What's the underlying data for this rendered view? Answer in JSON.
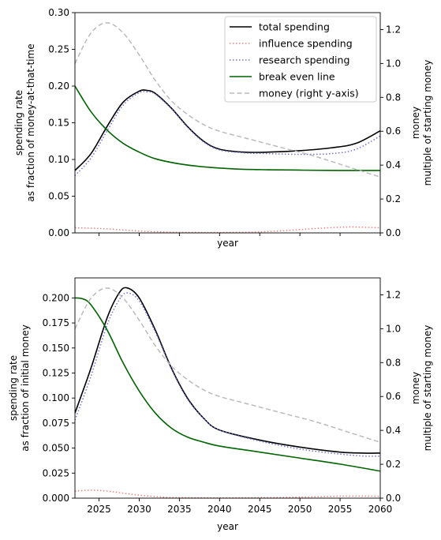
{
  "chart_data": [
    {
      "type": "line",
      "xlabel": "year",
      "ylabel_line1": "spending rate",
      "ylabel_line2": "as fraction of money-at-that-time",
      "y2label_line1": "money",
      "y2label_line2": "multiple of starting money",
      "xlim": [
        2022,
        2060
      ],
      "ylim": [
        0,
        0.3
      ],
      "y2lim": [
        0,
        1.3
      ],
      "x_tick_labels_shown": false,
      "x_ticks": [
        2025,
        2030,
        2035,
        2040,
        2045,
        2050,
        2055,
        2060
      ],
      "y_ticks": [
        0.0,
        0.05,
        0.1,
        0.15,
        0.2,
        0.25,
        0.3
      ],
      "y_tick_labels": [
        "0.00",
        "0.05",
        "0.10",
        "0.15",
        "0.20",
        "0.25",
        "0.30"
      ],
      "y2_ticks": [
        0.0,
        0.2,
        0.4,
        0.6,
        0.8,
        1.0,
        1.2
      ],
      "y2_tick_labels": [
        "0.0",
        "0.2",
        "0.4",
        "0.6",
        "0.8",
        "1.0",
        "1.2"
      ],
      "legend": {
        "placement": "top-right",
        "entries": [
          "total spending",
          "influence spending",
          "research spending",
          "break even line",
          "money (right y-axis)"
        ]
      },
      "series": [
        {
          "name": "total spending",
          "axis": "left",
          "color": "#000000",
          "style": "solid",
          "x": [
            2022,
            2024,
            2026,
            2028,
            2030,
            2031,
            2032,
            2034,
            2036,
            2038,
            2040,
            2043,
            2046,
            2050,
            2054,
            2057,
            2060
          ],
          "y": [
            0.085,
            0.108,
            0.145,
            0.178,
            0.193,
            0.194,
            0.19,
            0.17,
            0.145,
            0.125,
            0.114,
            0.11,
            0.11,
            0.112,
            0.116,
            0.122,
            0.139
          ]
        },
        {
          "name": "influence spending",
          "axis": "left",
          "color": "#f08080",
          "style": "dotted",
          "x": [
            2022,
            2025,
            2028,
            2031,
            2034,
            2037,
            2040,
            2044,
            2048,
            2052,
            2056,
            2060
          ],
          "y": [
            0.007,
            0.006,
            0.004,
            0.002,
            0.001,
            0.0005,
            0.0005,
            0.001,
            0.003,
            0.006,
            0.008,
            0.007
          ]
        },
        {
          "name": "research spending",
          "axis": "left",
          "color": "#7070e0",
          "style": "dotted",
          "x": [
            2022,
            2024,
            2026,
            2028,
            2030,
            2031,
            2032,
            2034,
            2036,
            2038,
            2040,
            2043,
            2046,
            2050,
            2054,
            2057,
            2060
          ],
          "y": [
            0.078,
            0.102,
            0.139,
            0.174,
            0.191,
            0.192,
            0.189,
            0.169,
            0.144,
            0.124,
            0.113,
            0.109,
            0.108,
            0.107,
            0.108,
            0.114,
            0.132
          ]
        },
        {
          "name": "break even line",
          "axis": "left",
          "color": "#006400",
          "style": "solid",
          "x": [
            2022,
            2024,
            2026,
            2028,
            2030,
            2032,
            2035,
            2038,
            2042,
            2046,
            2050,
            2055,
            2060
          ],
          "y": [
            0.2,
            0.165,
            0.14,
            0.122,
            0.11,
            0.101,
            0.094,
            0.09,
            0.087,
            0.086,
            0.0855,
            0.085,
            0.085
          ]
        },
        {
          "name": "money (right y-axis)",
          "axis": "right",
          "color": "#bbbbbb",
          "style": "dashed",
          "x": [
            2022,
            2024,
            2026,
            2028,
            2030,
            2032,
            2034,
            2036,
            2038,
            2040,
            2044,
            2048,
            2052,
            2056,
            2060
          ],
          "y": [
            1.0,
            1.18,
            1.24,
            1.18,
            1.05,
            0.9,
            0.78,
            0.7,
            0.64,
            0.6,
            0.55,
            0.5,
            0.45,
            0.39,
            0.33
          ]
        }
      ]
    },
    {
      "type": "line",
      "xlabel": "year",
      "ylabel_line1": "spending rate",
      "ylabel_line2": "as fraction of initial money",
      "y2label_line1": "money",
      "y2label_line2": "multiple of starting money",
      "xlim": [
        2022,
        2060
      ],
      "ylim": [
        0,
        0.22
      ],
      "y2lim": [
        0,
        1.3
      ],
      "x_tick_labels_shown": true,
      "x_ticks": [
        2025,
        2030,
        2035,
        2040,
        2045,
        2050,
        2055,
        2060
      ],
      "x_tick_labels": [
        "2025",
        "2030",
        "2035",
        "2040",
        "2045",
        "2050",
        "2055",
        "2060"
      ],
      "y_ticks": [
        0.0,
        0.025,
        0.05,
        0.075,
        0.1,
        0.125,
        0.15,
        0.175,
        0.2
      ],
      "y_tick_labels": [
        "0.000",
        "0.025",
        "0.050",
        "0.075",
        "0.100",
        "0.125",
        "0.150",
        "0.175",
        "0.200"
      ],
      "y2_ticks": [
        0.0,
        0.2,
        0.4,
        0.6,
        0.8,
        1.0,
        1.2
      ],
      "y2_tick_labels": [
        "0.0",
        "0.2",
        "0.4",
        "0.6",
        "0.8",
        "1.0",
        "1.2"
      ],
      "series": [
        {
          "name": "total spending",
          "axis": "left",
          "color": "#000000",
          "style": "solid",
          "x": [
            2022,
            2024,
            2026,
            2027.5,
            2028.5,
            2030,
            2032,
            2034,
            2036,
            2038,
            2040,
            2045,
            2050,
            2055,
            2058,
            2060
          ],
          "y": [
            0.085,
            0.13,
            0.18,
            0.205,
            0.21,
            0.2,
            0.168,
            0.13,
            0.1,
            0.08,
            0.068,
            0.058,
            0.051,
            0.046,
            0.045,
            0.045
          ]
        },
        {
          "name": "influence spending",
          "axis": "left",
          "color": "#f08080",
          "style": "dotted",
          "x": [
            2022,
            2024,
            2026,
            2028,
            2030,
            2033,
            2036,
            2040,
            2045,
            2050,
            2055,
            2060
          ],
          "y": [
            0.007,
            0.008,
            0.007,
            0.005,
            0.003,
            0.001,
            0.0005,
            0.0003,
            0.0005,
            0.001,
            0.002,
            0.002
          ]
        },
        {
          "name": "research spending",
          "axis": "left",
          "color": "#7070e0",
          "style": "dotted",
          "x": [
            2022,
            2024,
            2026,
            2027.5,
            2028.5,
            2030,
            2032,
            2034,
            2036,
            2038,
            2040,
            2045,
            2050,
            2055,
            2058,
            2060
          ],
          "y": [
            0.078,
            0.122,
            0.173,
            0.198,
            0.205,
            0.197,
            0.166,
            0.129,
            0.099,
            0.08,
            0.068,
            0.057,
            0.049,
            0.044,
            0.042,
            0.042
          ]
        },
        {
          "name": "break even line",
          "axis": "left",
          "color": "#006400",
          "style": "solid",
          "x": [
            2022,
            2023,
            2024,
            2026,
            2028,
            2030,
            2032,
            2034,
            2036,
            2038,
            2040,
            2045,
            2050,
            2055,
            2060
          ],
          "y": [
            0.2,
            0.199,
            0.193,
            0.168,
            0.135,
            0.107,
            0.085,
            0.07,
            0.061,
            0.056,
            0.052,
            0.046,
            0.04,
            0.034,
            0.027
          ]
        },
        {
          "name": "money (right y-axis)",
          "axis": "right",
          "color": "#bbbbbb",
          "style": "dashed",
          "x": [
            2022,
            2024,
            2026,
            2028,
            2030,
            2032,
            2034,
            2036,
            2038,
            2040,
            2044,
            2048,
            2052,
            2056,
            2060
          ],
          "y": [
            1.0,
            1.18,
            1.24,
            1.18,
            1.05,
            0.9,
            0.78,
            0.7,
            0.64,
            0.6,
            0.55,
            0.5,
            0.45,
            0.39,
            0.33
          ]
        }
      ]
    }
  ]
}
